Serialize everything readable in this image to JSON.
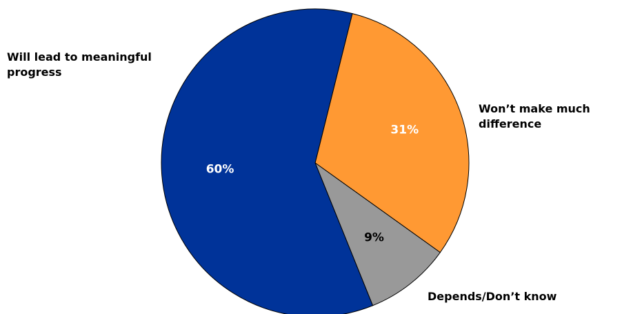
{
  "chart_data": {
    "type": "pie",
    "categories": [
      "Will lead to meaningful progress",
      "Won’t make much difference",
      "Depends/Don’t know"
    ],
    "values": [
      60,
      31,
      9
    ],
    "value_labels": [
      "60%",
      "31%",
      "9%"
    ],
    "colors": [
      "#003399",
      "#FF9933",
      "#999999"
    ],
    "value_label_colors": [
      "#ffffff",
      "#ffffff",
      "#000000"
    ],
    "legend": "none"
  }
}
